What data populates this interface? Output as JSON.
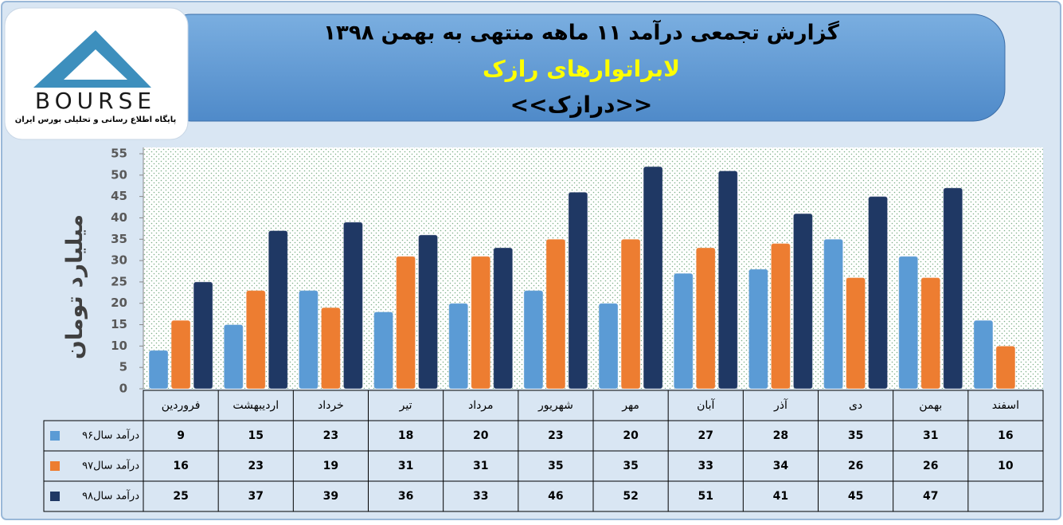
{
  "logo": {
    "name": "BOURSE",
    "caption": "پایگاه اطلاع رسانی و تحلیلی بورس ایران"
  },
  "chart_data": {
    "type": "bar",
    "title": "گزارش تجمعی درآمد ١١ ماهه منتهی به بهمن ١٣٩٨",
    "subtitle": "لابراتوارهای رازک",
    "ticker": "<<درازک>>",
    "y_label": "میلیارد تومان",
    "categories": [
      "فروردین",
      "اردیبهشت",
      "خرداد",
      "تیر",
      "مرداد",
      "شهریور",
      "مهر",
      "آبان",
      "آذر",
      "دی",
      "بهمن",
      "اسفند"
    ],
    "series": [
      {
        "name": "درآمد سال۹۶",
        "color": "#5b9bd5",
        "values": [
          9,
          15,
          23,
          18,
          20,
          23,
          20,
          27,
          28,
          35,
          31,
          16
        ]
      },
      {
        "name": "درآمد سال۹۷",
        "color": "#ed7d31",
        "values": [
          16,
          23,
          19,
          31,
          31,
          35,
          35,
          33,
          34,
          26,
          26,
          10
        ]
      },
      {
        "name": "درآمد سال۹۸",
        "color": "#1f3864",
        "values": [
          25,
          37,
          39,
          36,
          33,
          46,
          52,
          51,
          41,
          45,
          47,
          null
        ]
      }
    ],
    "ylim": [
      0,
      55
    ],
    "yticks": [
      0,
      5,
      10,
      15,
      20,
      25,
      30,
      35,
      40,
      45,
      50,
      55
    ],
    "grid": false
  }
}
